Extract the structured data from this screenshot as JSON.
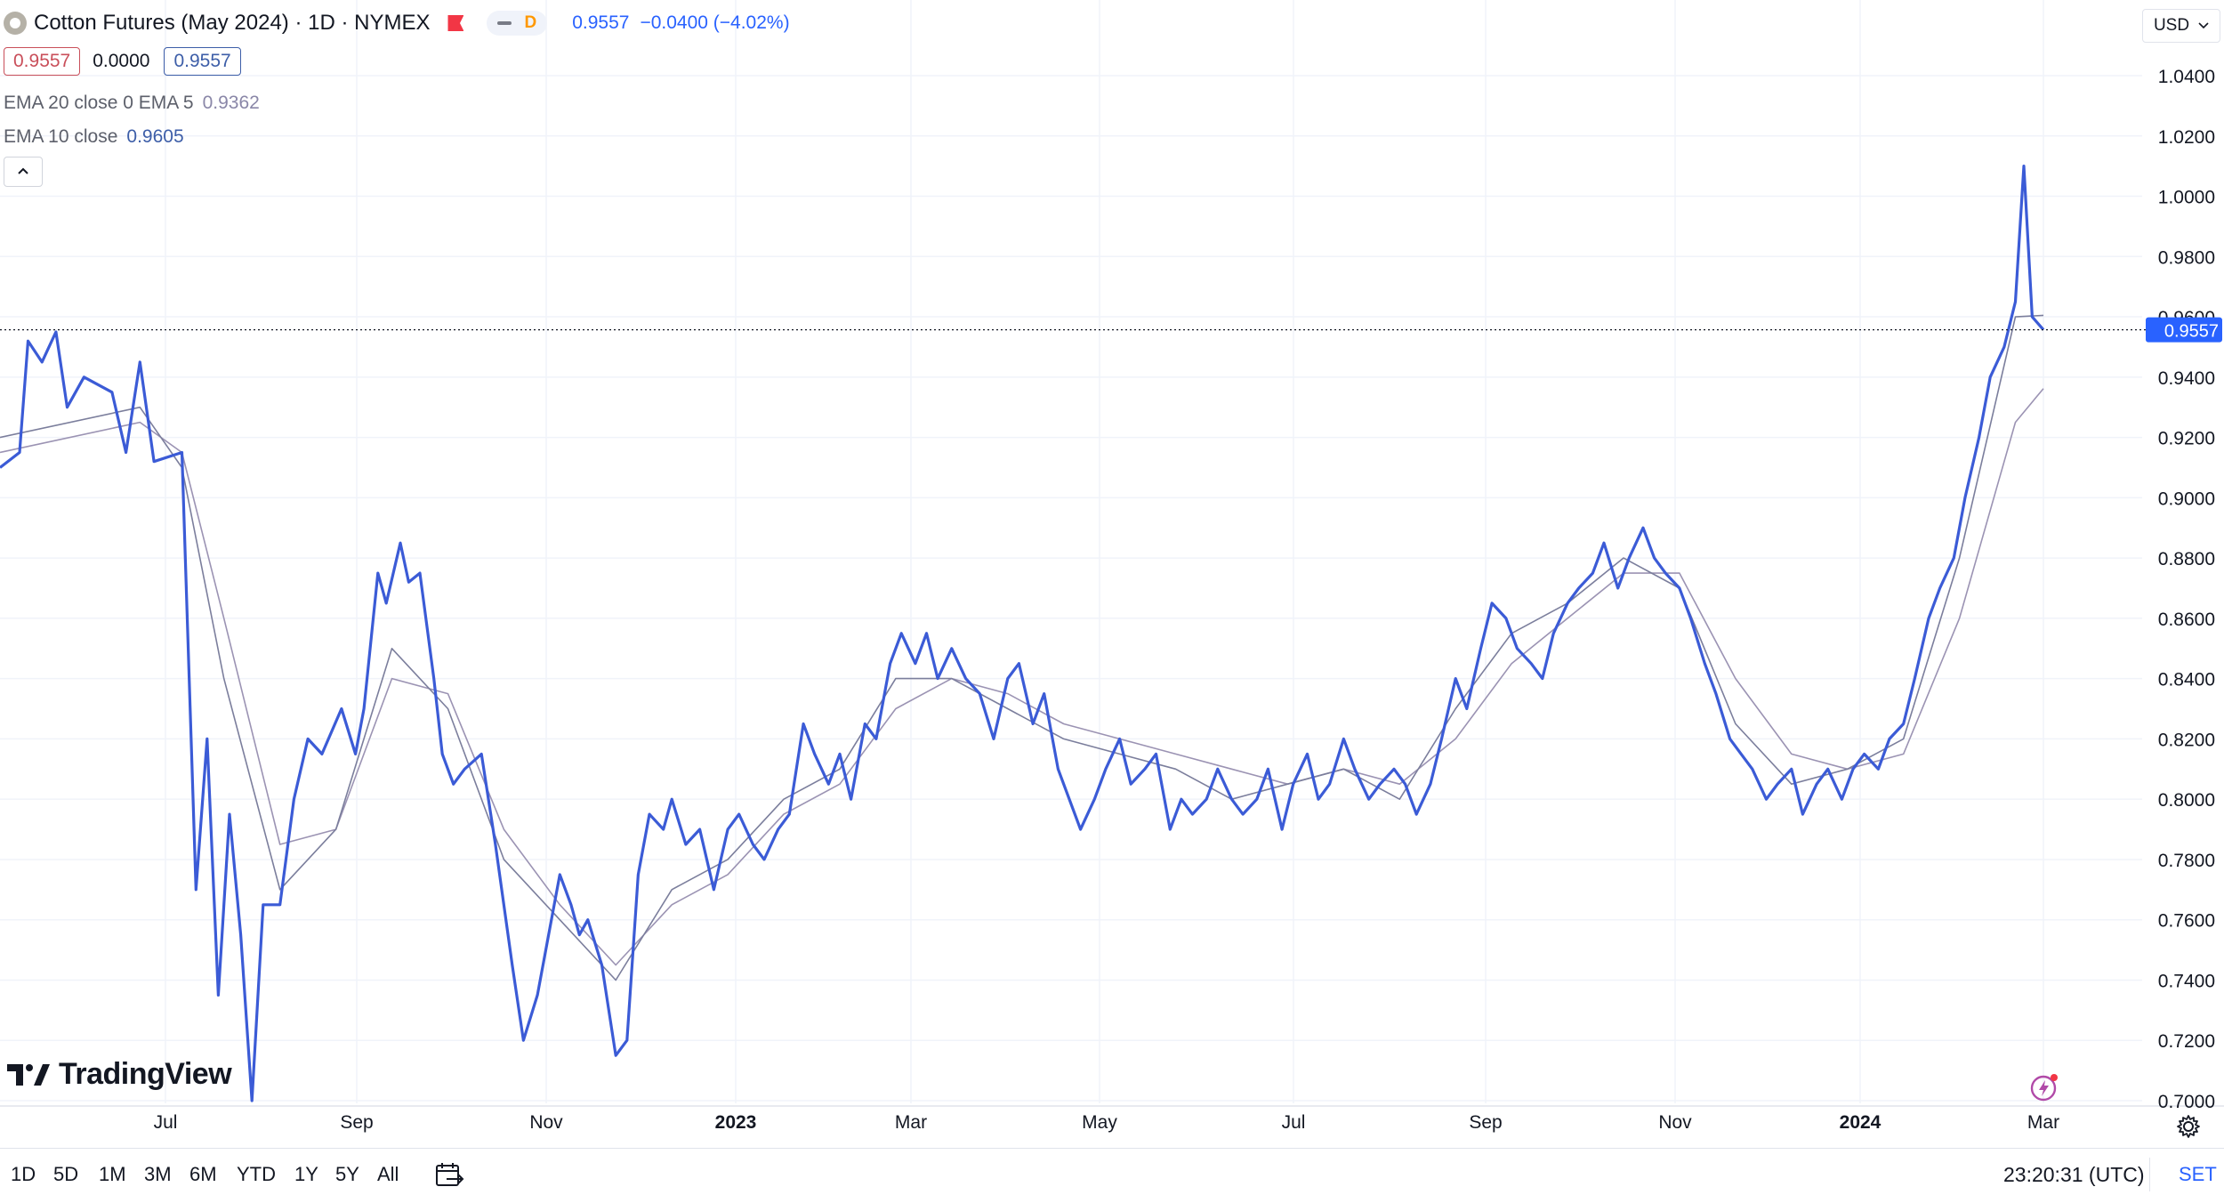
{
  "header": {
    "title": "Cotton Futures (May 2024) · 1D · NYMEX",
    "interval_badge": "D",
    "last_price": "0.9557",
    "change": "−0.0400 (−4.02%)",
    "bid_box": "0.9557",
    "spread": "0.0000",
    "ask_box": "0.9557"
  },
  "indicators": [
    {
      "label": "EMA 20 close 0 EMA 5",
      "value": "0.9362",
      "color": "#8a87a8"
    },
    {
      "label": "EMA 10 close",
      "value": "0.9605",
      "color": "#3d5ea8"
    }
  ],
  "currency": "USD",
  "branding": "TradingView",
  "bottom_bar": {
    "ranges": [
      "1D",
      "5D",
      "1M",
      "3M",
      "6M",
      "YTD",
      "1Y",
      "5Y",
      "All"
    ],
    "clock": "23:20:31 (UTC)",
    "session": "SET"
  },
  "colors": {
    "price_line": "#3b5bd6",
    "ema_a": "#7b7e9c",
    "ema_b": "#9b93b3",
    "last_price_label": "#2962ff"
  },
  "chart_data": {
    "type": "line",
    "title": "Cotton Futures (May 2024)",
    "xlabel": "",
    "ylabel": "",
    "x_ticks": [
      "Jul",
      "Sep",
      "Nov",
      "2023",
      "Mar",
      "May",
      "Jul",
      "Sep",
      "Nov",
      "2024",
      "Mar"
    ],
    "y_ticks": [
      "0.7000",
      "0.7200",
      "0.7400",
      "0.7600",
      "0.7800",
      "0.8000",
      "0.8200",
      "0.8400",
      "0.8600",
      "0.8800",
      "0.9000",
      "0.9200",
      "0.9400",
      "0.9600",
      "0.9800",
      "1.0000",
      "1.0200",
      "1.0400"
    ],
    "ylim": [
      0.7,
      1.04
    ],
    "last_value_label": "0.9557",
    "grid": true,
    "series": [
      {
        "values": [
          [
            0.0,
            0.91
          ],
          [
            0.7,
            0.915
          ],
          [
            1.0,
            0.952
          ],
          [
            1.5,
            0.945
          ],
          [
            2.0,
            0.955
          ],
          [
            2.4,
            0.93
          ],
          [
            3.0,
            0.94
          ],
          [
            4.0,
            0.935
          ],
          [
            4.5,
            0.915
          ],
          [
            5.0,
            0.945
          ],
          [
            5.5,
            0.912
          ],
          [
            6.5,
            0.915
          ],
          [
            7.0,
            0.77
          ],
          [
            7.4,
            0.82
          ],
          [
            7.8,
            0.735
          ],
          [
            8.2,
            0.795
          ],
          [
            8.6,
            0.755
          ],
          [
            9.0,
            0.7
          ],
          [
            9.4,
            0.765
          ],
          [
            10.0,
            0.765
          ],
          [
            10.5,
            0.8
          ],
          [
            11.0,
            0.82
          ],
          [
            11.5,
            0.815
          ],
          [
            12.2,
            0.83
          ],
          [
            12.7,
            0.815
          ],
          [
            13.0,
            0.83
          ],
          [
            13.5,
            0.875
          ],
          [
            13.8,
            0.865
          ],
          [
            14.3,
            0.885
          ],
          [
            14.6,
            0.872
          ],
          [
            15.0,
            0.875
          ],
          [
            15.5,
            0.84
          ],
          [
            15.8,
            0.815
          ],
          [
            16.2,
            0.805
          ],
          [
            16.6,
            0.81
          ],
          [
            17.2,
            0.815
          ],
          [
            17.7,
            0.785
          ],
          [
            18.3,
            0.745
          ],
          [
            18.7,
            0.72
          ],
          [
            19.2,
            0.735
          ],
          [
            19.6,
            0.755
          ],
          [
            20.0,
            0.775
          ],
          [
            20.4,
            0.765
          ],
          [
            20.7,
            0.755
          ],
          [
            21.0,
            0.76
          ],
          [
            21.5,
            0.745
          ],
          [
            22.0,
            0.715
          ],
          [
            22.4,
            0.72
          ],
          [
            22.8,
            0.775
          ],
          [
            23.2,
            0.795
          ],
          [
            23.7,
            0.79
          ],
          [
            24.0,
            0.8
          ],
          [
            24.5,
            0.785
          ],
          [
            25.0,
            0.79
          ],
          [
            25.5,
            0.77
          ],
          [
            26.0,
            0.79
          ],
          [
            26.4,
            0.795
          ],
          [
            26.9,
            0.785
          ],
          [
            27.3,
            0.78
          ],
          [
            27.8,
            0.79
          ],
          [
            28.2,
            0.795
          ],
          [
            28.7,
            0.825
          ],
          [
            29.1,
            0.815
          ],
          [
            29.6,
            0.805
          ],
          [
            30.0,
            0.815
          ],
          [
            30.4,
            0.8
          ],
          [
            30.9,
            0.825
          ],
          [
            31.3,
            0.82
          ],
          [
            31.8,
            0.845
          ],
          [
            32.2,
            0.855
          ],
          [
            32.7,
            0.845
          ],
          [
            33.1,
            0.855
          ],
          [
            33.5,
            0.84
          ],
          [
            34.0,
            0.85
          ],
          [
            34.5,
            0.84
          ],
          [
            35.0,
            0.835
          ],
          [
            35.5,
            0.82
          ],
          [
            36.0,
            0.84
          ],
          [
            36.4,
            0.845
          ],
          [
            36.9,
            0.825
          ],
          [
            37.3,
            0.835
          ],
          [
            37.8,
            0.81
          ],
          [
            38.2,
            0.8
          ],
          [
            38.6,
            0.79
          ],
          [
            39.1,
            0.8
          ],
          [
            39.5,
            0.81
          ],
          [
            40.0,
            0.82
          ],
          [
            40.4,
            0.805
          ],
          [
            40.9,
            0.81
          ],
          [
            41.3,
            0.815
          ],
          [
            41.8,
            0.79
          ],
          [
            42.2,
            0.8
          ],
          [
            42.6,
            0.795
          ],
          [
            43.1,
            0.8
          ],
          [
            43.5,
            0.81
          ],
          [
            44.0,
            0.8
          ],
          [
            44.4,
            0.795
          ],
          [
            44.9,
            0.8
          ],
          [
            45.3,
            0.81
          ],
          [
            45.8,
            0.79
          ],
          [
            46.2,
            0.805
          ],
          [
            46.7,
            0.815
          ],
          [
            47.1,
            0.8
          ],
          [
            47.5,
            0.805
          ],
          [
            48.0,
            0.82
          ],
          [
            48.4,
            0.81
          ],
          [
            48.9,
            0.8
          ],
          [
            49.3,
            0.805
          ],
          [
            49.8,
            0.81
          ],
          [
            50.2,
            0.805
          ],
          [
            50.6,
            0.795
          ],
          [
            51.1,
            0.805
          ],
          [
            51.5,
            0.82
          ],
          [
            52.0,
            0.84
          ],
          [
            52.4,
            0.83
          ],
          [
            52.9,
            0.85
          ],
          [
            53.3,
            0.865
          ],
          [
            53.8,
            0.86
          ],
          [
            54.2,
            0.85
          ],
          [
            54.7,
            0.845
          ],
          [
            55.1,
            0.84
          ],
          [
            55.5,
            0.855
          ],
          [
            56.0,
            0.865
          ],
          [
            56.4,
            0.87
          ],
          [
            56.9,
            0.875
          ],
          [
            57.3,
            0.885
          ],
          [
            57.8,
            0.87
          ],
          [
            58.2,
            0.88
          ],
          [
            58.7,
            0.89
          ],
          [
            59.1,
            0.88
          ],
          [
            59.5,
            0.875
          ],
          [
            60.0,
            0.87
          ],
          [
            60.4,
            0.86
          ],
          [
            60.9,
            0.845
          ],
          [
            61.3,
            0.835
          ],
          [
            61.8,
            0.82
          ],
          [
            62.2,
            0.815
          ],
          [
            62.6,
            0.81
          ],
          [
            63.1,
            0.8
          ],
          [
            63.5,
            0.805
          ],
          [
            64.0,
            0.81
          ],
          [
            64.4,
            0.795
          ],
          [
            64.9,
            0.805
          ],
          [
            65.3,
            0.81
          ],
          [
            65.8,
            0.8
          ],
          [
            66.2,
            0.81
          ],
          [
            66.6,
            0.815
          ],
          [
            67.1,
            0.81
          ],
          [
            67.5,
            0.82
          ],
          [
            68.0,
            0.825
          ],
          [
            68.4,
            0.84
          ],
          [
            68.9,
            0.86
          ],
          [
            69.3,
            0.87
          ],
          [
            69.8,
            0.88
          ],
          [
            70.2,
            0.9
          ],
          [
            70.7,
            0.92
          ],
          [
            71.1,
            0.94
          ],
          [
            71.6,
            0.95
          ],
          [
            72.0,
            0.965
          ],
          [
            72.3,
            1.01
          ],
          [
            72.6,
            0.96
          ],
          [
            73.0,
            0.9557
          ]
        ]
      },
      {
        "name": "EMA 10 close",
        "values": [
          [
            0.0,
            0.92
          ],
          [
            5.0,
            0.93
          ],
          [
            6.5,
            0.91
          ],
          [
            8.0,
            0.84
          ],
          [
            10.0,
            0.77
          ],
          [
            12.0,
            0.79
          ],
          [
            14.0,
            0.85
          ],
          [
            16.0,
            0.83
          ],
          [
            18.0,
            0.78
          ],
          [
            20.0,
            0.76
          ],
          [
            22.0,
            0.74
          ],
          [
            24.0,
            0.77
          ],
          [
            26.0,
            0.78
          ],
          [
            28.0,
            0.8
          ],
          [
            30.0,
            0.81
          ],
          [
            32.0,
            0.84
          ],
          [
            34.0,
            0.84
          ],
          [
            36.0,
            0.83
          ],
          [
            38.0,
            0.82
          ],
          [
            40.0,
            0.815
          ],
          [
            42.0,
            0.81
          ],
          [
            44.0,
            0.8
          ],
          [
            46.0,
            0.805
          ],
          [
            48.0,
            0.81
          ],
          [
            50.0,
            0.8
          ],
          [
            52.0,
            0.83
          ],
          [
            54.0,
            0.855
          ],
          [
            56.0,
            0.865
          ],
          [
            58.0,
            0.88
          ],
          [
            60.0,
            0.87
          ],
          [
            62.0,
            0.825
          ],
          [
            64.0,
            0.805
          ],
          [
            66.0,
            0.81
          ],
          [
            68.0,
            0.82
          ],
          [
            70.0,
            0.88
          ],
          [
            72.0,
            0.96
          ],
          [
            73.0,
            0.9605
          ]
        ]
      },
      {
        "name": "EMA 20 close 0 EMA 5",
        "values": [
          [
            0.0,
            0.915
          ],
          [
            5.0,
            0.925
          ],
          [
            6.5,
            0.915
          ],
          [
            8.0,
            0.86
          ],
          [
            10.0,
            0.785
          ],
          [
            12.0,
            0.79
          ],
          [
            14.0,
            0.84
          ],
          [
            16.0,
            0.835
          ],
          [
            18.0,
            0.79
          ],
          [
            20.0,
            0.765
          ],
          [
            22.0,
            0.745
          ],
          [
            24.0,
            0.765
          ],
          [
            26.0,
            0.775
          ],
          [
            28.0,
            0.795
          ],
          [
            30.0,
            0.805
          ],
          [
            32.0,
            0.83
          ],
          [
            34.0,
            0.84
          ],
          [
            36.0,
            0.835
          ],
          [
            38.0,
            0.825
          ],
          [
            40.0,
            0.82
          ],
          [
            42.0,
            0.815
          ],
          [
            44.0,
            0.81
          ],
          [
            46.0,
            0.805
          ],
          [
            48.0,
            0.81
          ],
          [
            50.0,
            0.805
          ],
          [
            52.0,
            0.82
          ],
          [
            54.0,
            0.845
          ],
          [
            56.0,
            0.86
          ],
          [
            58.0,
            0.875
          ],
          [
            60.0,
            0.875
          ],
          [
            62.0,
            0.84
          ],
          [
            64.0,
            0.815
          ],
          [
            66.0,
            0.81
          ],
          [
            68.0,
            0.815
          ],
          [
            70.0,
            0.86
          ],
          [
            72.0,
            0.925
          ],
          [
            73.0,
            0.9362
          ]
        ]
      }
    ]
  }
}
